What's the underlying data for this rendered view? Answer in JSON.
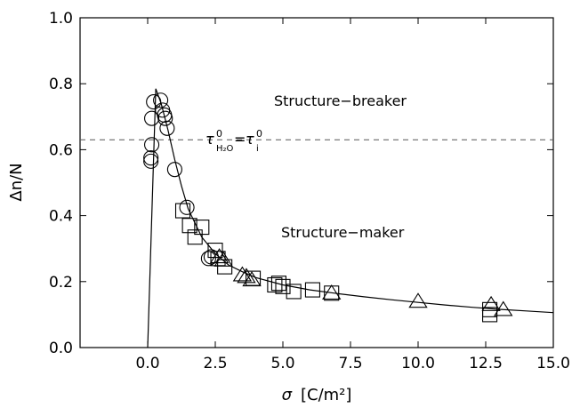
{
  "chart_data": {
    "type": "scatter",
    "title": "",
    "xlabel": {
      "symbol": "σ",
      "unit": "[C/m²]"
    },
    "ylabel": "Δn/N",
    "xlim": [
      -2.5,
      15.0
    ],
    "ylim": [
      0.0,
      1.0
    ],
    "xticks": [
      0.0,
      2.5,
      5.0,
      7.5,
      10.0,
      12.5,
      15.0
    ],
    "xtick_labels": [
      "0.0",
      "2.5",
      "5.0",
      "7.5",
      "10.0",
      "12.5",
      "15.0"
    ],
    "yticks": [
      0.0,
      0.2,
      0.4,
      0.6,
      0.8,
      1.0
    ],
    "ytick_labels": [
      "0.0",
      "0.2",
      "0.4",
      "0.6",
      "0.8",
      "1.0"
    ],
    "grid": false,
    "reference_line": {
      "y": 0.63,
      "style": "dashed"
    },
    "annotations": {
      "breaker": "Structure−breaker",
      "maker": "Structure−maker",
      "threshold": {
        "tau": "τ",
        "sup": "0",
        "sub_water": "H₂O",
        "eq": "=",
        "sub_i": "i"
      }
    },
    "series": [
      {
        "marker": "circle",
        "points": [
          [
            0.12,
            0.565
          ],
          [
            0.12,
            0.575
          ],
          [
            0.15,
            0.615
          ],
          [
            0.15,
            0.695
          ],
          [
            0.22,
            0.745
          ],
          [
            0.48,
            0.75
          ],
          [
            0.55,
            0.72
          ],
          [
            0.62,
            0.705
          ],
          [
            0.65,
            0.695
          ],
          [
            0.72,
            0.665
          ],
          [
            1.0,
            0.54
          ],
          [
            1.45,
            0.425
          ],
          [
            2.25,
            0.27
          ],
          [
            2.35,
            0.275
          ]
        ]
      },
      {
        "marker": "square",
        "points": [
          [
            1.3,
            0.415
          ],
          [
            1.55,
            0.37
          ],
          [
            1.75,
            0.335
          ],
          [
            2.0,
            0.365
          ],
          [
            2.5,
            0.295
          ],
          [
            2.6,
            0.27
          ],
          [
            2.85,
            0.245
          ],
          [
            3.9,
            0.21
          ],
          [
            4.7,
            0.19
          ],
          [
            4.85,
            0.195
          ],
          [
            5.0,
            0.185
          ],
          [
            5.4,
            0.17
          ],
          [
            6.1,
            0.175
          ],
          [
            6.8,
            0.165
          ],
          [
            12.65,
            0.1
          ],
          [
            12.65,
            0.115
          ]
        ]
      },
      {
        "marker": "triangle",
        "points": [
          [
            2.65,
            0.275
          ],
          [
            2.8,
            0.265
          ],
          [
            3.5,
            0.22
          ],
          [
            3.65,
            0.215
          ],
          [
            3.85,
            0.205
          ],
          [
            6.8,
            0.165
          ],
          [
            10.0,
            0.14
          ],
          [
            12.7,
            0.13
          ],
          [
            13.15,
            0.115
          ]
        ]
      }
    ],
    "fit_curve": {
      "rise": [
        [
          0.0,
          0.0
        ],
        [
          0.3,
          0.785
        ]
      ],
      "decay": [
        [
          0.3,
          0.785
        ],
        [
          0.5,
          0.74
        ],
        [
          0.75,
          0.66
        ],
        [
          1.0,
          0.57
        ],
        [
          1.25,
          0.49
        ],
        [
          1.5,
          0.42
        ],
        [
          2.0,
          0.335
        ],
        [
          2.5,
          0.285
        ],
        [
          3.0,
          0.25
        ],
        [
          3.5,
          0.23
        ],
        [
          4.0,
          0.212
        ],
        [
          5.0,
          0.19
        ],
        [
          6.0,
          0.175
        ],
        [
          7.0,
          0.164
        ],
        [
          8.0,
          0.154
        ],
        [
          9.0,
          0.145
        ],
        [
          10.0,
          0.137
        ],
        [
          11.0,
          0.129
        ],
        [
          12.0,
          0.122
        ],
        [
          13.0,
          0.116
        ],
        [
          14.0,
          0.111
        ],
        [
          15.0,
          0.106
        ]
      ]
    }
  }
}
